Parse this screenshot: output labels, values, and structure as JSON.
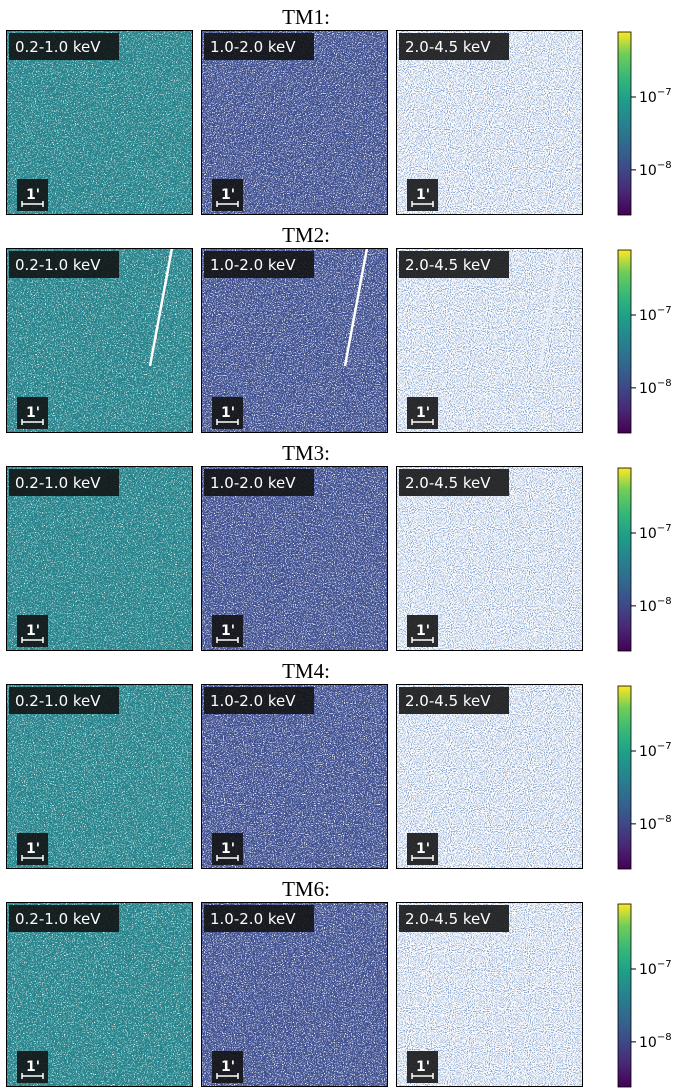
{
  "figure": {
    "rows": [
      {
        "title": "TM1:",
        "panels": [
          "0.2-1.0 keV",
          "1.0-2.0 keV",
          "2.0-4.5 keV"
        ],
        "scale_bar": "1'",
        "colorbar": {
          "scale": "log",
          "lim": [
            2.4e-09,
            7.8e-07
          ],
          "ticks": [
            {
              "value": 1e-08,
              "label": "10−8"
            },
            {
              "value": 1e-07,
              "label": "10−7"
            }
          ]
        }
      },
      {
        "title": "TM2:",
        "panels": [
          "0.2-1.0 keV",
          "1.0-2.0 keV",
          "2.0-4.5 keV"
        ],
        "scale_bar": "1'",
        "colorbar": {
          "scale": "log",
          "lim": [
            2.4e-09,
            7.8e-07
          ],
          "ticks": [
            {
              "value": 1e-08,
              "label": "10−8"
            },
            {
              "value": 1e-07,
              "label": "10−7"
            }
          ]
        }
      },
      {
        "title": "TM3:",
        "panels": [
          "0.2-1.0 keV",
          "1.0-2.0 keV",
          "2.0-4.5 keV"
        ],
        "scale_bar": "1'",
        "colorbar": {
          "scale": "log",
          "lim": [
            2.4e-09,
            7.8e-07
          ],
          "ticks": [
            {
              "value": 1e-08,
              "label": "10−8"
            },
            {
              "value": 1e-07,
              "label": "10−7"
            }
          ]
        }
      },
      {
        "title": "TM4:",
        "panels": [
          "0.2-1.0 keV",
          "1.0-2.0 keV",
          "2.0-4.5 keV"
        ],
        "scale_bar": "1'",
        "colorbar": {
          "scale": "log",
          "lim": [
            2.4e-09,
            7.8e-07
          ],
          "ticks": [
            {
              "value": 1e-08,
              "label": "10−8"
            },
            {
              "value": 1e-07,
              "label": "10−7"
            }
          ]
        }
      },
      {
        "title": "TM6:",
        "panels": [
          "0.2-1.0 keV",
          "1.0-2.0 keV",
          "2.0-4.5 keV"
        ],
        "scale_bar": "1'",
        "colorbar": {
          "scale": "log",
          "lim": [
            2.4e-09,
            7.8e-07
          ],
          "ticks": [
            {
              "value": 1e-08,
              "label": "10−8"
            },
            {
              "value": 1e-07,
              "label": "10−7"
            }
          ]
        }
      }
    ]
  }
}
